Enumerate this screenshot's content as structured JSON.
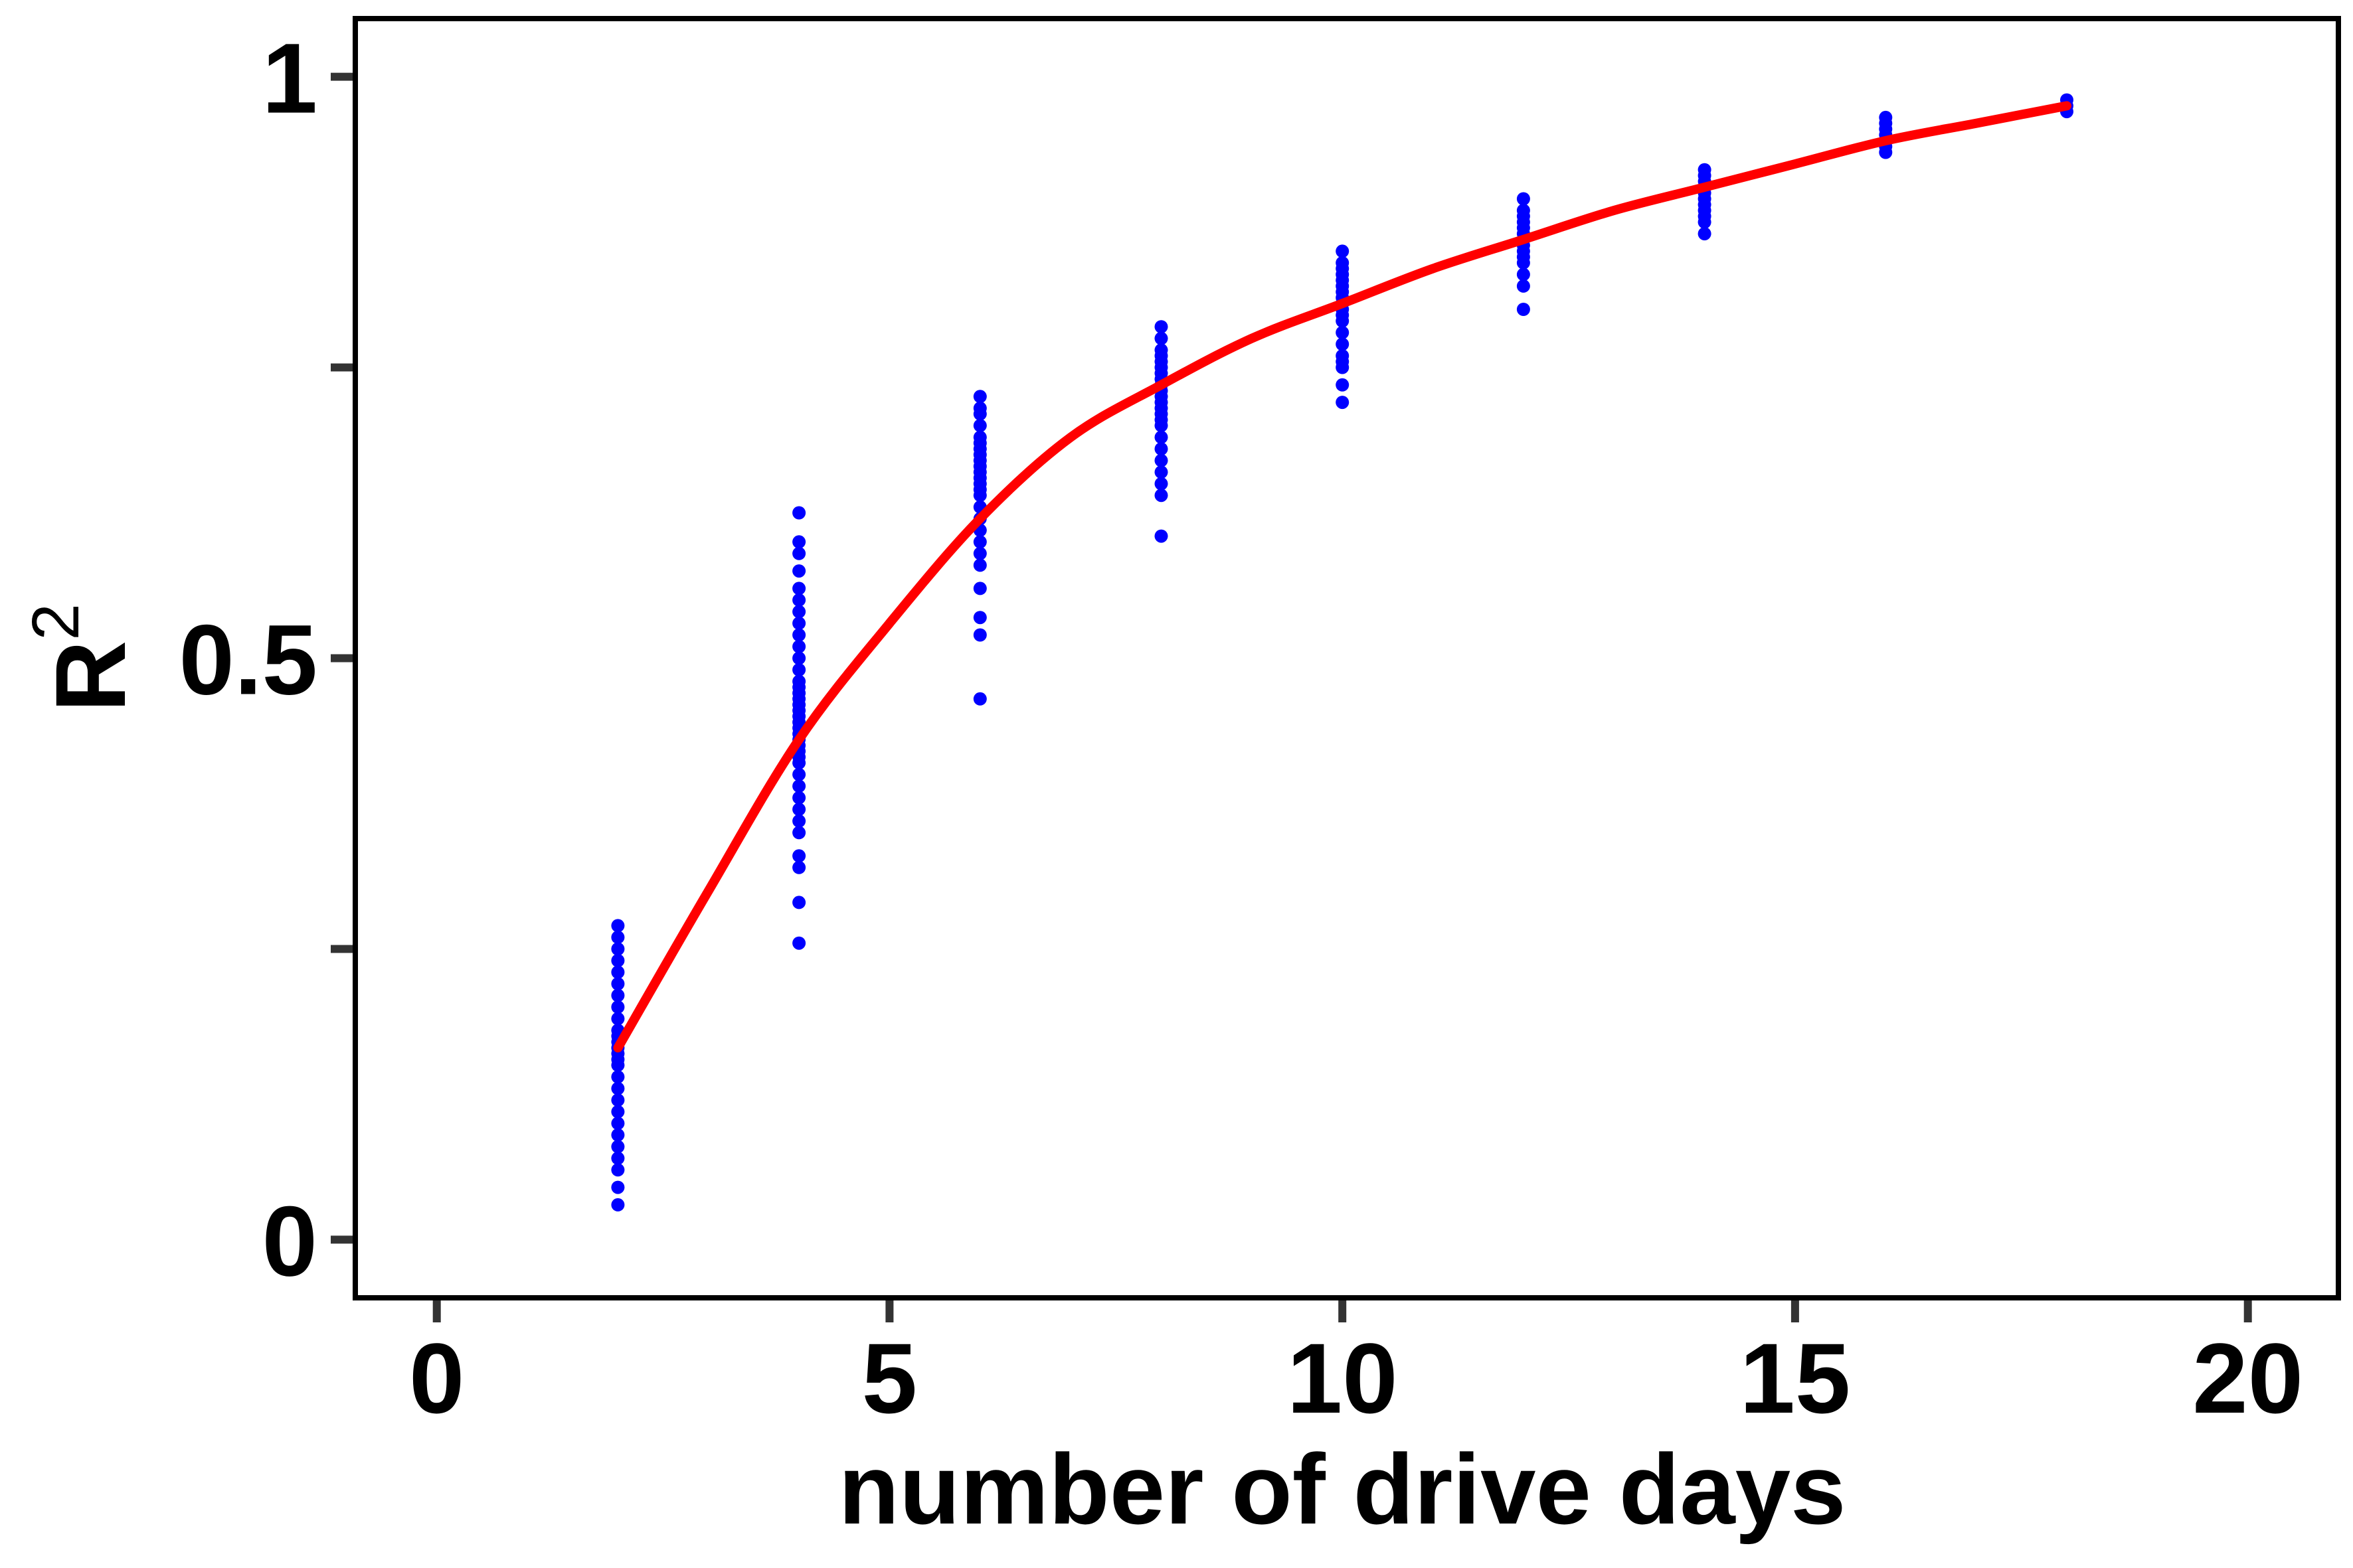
{
  "chart_data": {
    "type": "scatter",
    "title": "",
    "xlabel": "number of drive days",
    "ylabel_base": "R",
    "ylabel_sup": "2",
    "xlim": [
      -0.9,
      21.0
    ],
    "ylim": [
      -0.05,
      1.05
    ],
    "x_ticks": [
      0,
      5,
      10,
      15,
      20
    ],
    "x_tick_labels": [
      "0",
      "5",
      "10",
      "15",
      "20"
    ],
    "y_ticks": [
      0,
      0.25,
      0.5,
      0.75,
      1
    ],
    "y_tick_labels": [
      "0",
      "",
      "0.5",
      "",
      "1"
    ],
    "grid": false,
    "colors": {
      "points": "#0000ff",
      "fit": "#ff0000",
      "axis": "#000000",
      "ticks": "#333333"
    },
    "series": [
      {
        "kind": "points",
        "x": [
          2,
          2,
          2,
          2,
          2,
          2,
          2,
          2,
          2,
          2,
          2,
          2,
          2,
          2,
          2,
          2,
          2,
          2,
          2,
          2,
          2,
          2,
          2,
          2,
          2,
          2,
          2,
          4,
          4,
          4,
          4,
          4,
          4,
          4,
          4,
          4,
          4,
          4,
          4,
          4,
          4,
          4,
          4,
          4,
          4,
          4,
          4,
          4,
          4,
          4,
          4,
          4,
          4,
          4,
          4,
          4,
          4,
          4,
          4,
          4,
          4,
          4,
          4,
          4,
          6,
          6,
          6,
          6,
          6,
          6,
          6,
          6,
          6,
          6,
          6,
          6,
          6,
          6,
          6,
          6,
          6,
          6,
          6,
          6,
          6,
          6,
          6,
          6,
          6,
          8,
          8,
          8,
          8,
          8,
          8,
          8,
          8,
          8,
          8,
          8,
          8,
          8,
          8,
          8,
          8,
          8,
          8,
          8,
          8,
          8,
          8,
          8,
          10,
          10,
          10,
          10,
          10,
          10,
          10,
          10,
          10,
          10,
          10,
          10,
          10,
          10,
          10,
          10,
          10,
          10,
          10,
          12,
          12,
          12,
          12,
          12,
          12,
          12,
          12,
          12,
          12,
          12,
          12,
          12,
          12,
          14,
          14,
          14,
          14,
          14,
          14,
          14,
          14,
          14,
          14,
          14,
          16,
          16,
          16,
          16,
          16,
          16,
          16,
          18,
          18,
          18
        ],
        "y": [
          0.03,
          0.045,
          0.06,
          0.07,
          0.08,
          0.09,
          0.1,
          0.11,
          0.12,
          0.13,
          0.14,
          0.15,
          0.155,
          0.16,
          0.165,
          0.17,
          0.175,
          0.18,
          0.19,
          0.2,
          0.21,
          0.22,
          0.23,
          0.24,
          0.25,
          0.26,
          0.27,
          0.255,
          0.29,
          0.32,
          0.33,
          0.35,
          0.36,
          0.37,
          0.38,
          0.39,
          0.4,
          0.41,
          0.415,
          0.42,
          0.425,
          0.43,
          0.435,
          0.44,
          0.445,
          0.45,
          0.455,
          0.46,
          0.465,
          0.47,
          0.475,
          0.48,
          0.49,
          0.5,
          0.51,
          0.52,
          0.53,
          0.54,
          0.55,
          0.56,
          0.575,
          0.59,
          0.6,
          0.625,
          0.465,
          0.52,
          0.535,
          0.56,
          0.58,
          0.59,
          0.6,
          0.61,
          0.62,
          0.63,
          0.64,
          0.645,
          0.65,
          0.655,
          0.66,
          0.665,
          0.67,
          0.675,
          0.68,
          0.685,
          0.69,
          0.7,
          0.71,
          0.715,
          0.725,
          0.605,
          0.64,
          0.65,
          0.66,
          0.67,
          0.68,
          0.69,
          0.7,
          0.705,
          0.71,
          0.715,
          0.72,
          0.725,
          0.73,
          0.735,
          0.74,
          0.745,
          0.75,
          0.755,
          0.76,
          0.765,
          0.775,
          0.785,
          0.72,
          0.735,
          0.75,
          0.755,
          0.76,
          0.77,
          0.78,
          0.79,
          0.795,
          0.8,
          0.805,
          0.81,
          0.815,
          0.82,
          0.825,
          0.83,
          0.835,
          0.84,
          0.85,
          0.8,
          0.82,
          0.83,
          0.84,
          0.845,
          0.85,
          0.855,
          0.86,
          0.865,
          0.87,
          0.875,
          0.88,
          0.885,
          0.895,
          0.865,
          0.875,
          0.88,
          0.885,
          0.89,
          0.895,
          0.9,
          0.905,
          0.91,
          0.915,
          0.92,
          0.935,
          0.94,
          0.945,
          0.95,
          0.955,
          0.96,
          0.965,
          0.97,
          0.975,
          0.98
        ]
      },
      {
        "kind": "fit",
        "x": [
          2,
          3,
          4,
          5,
          6,
          7,
          8,
          9,
          10,
          11,
          12,
          13,
          14,
          15,
          16,
          17,
          18
        ],
        "y": [
          0.165,
          0.3,
          0.43,
          0.53,
          0.62,
          0.69,
          0.735,
          0.775,
          0.805,
          0.835,
          0.86,
          0.885,
          0.905,
          0.925,
          0.945,
          0.96,
          0.975
        ]
      }
    ]
  }
}
